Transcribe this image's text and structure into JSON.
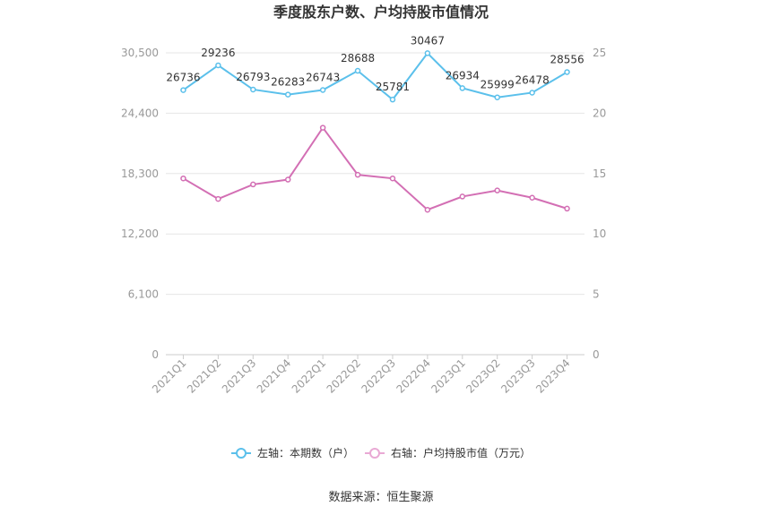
{
  "chart_data": {
    "type": "line",
    "title": "季度股东户数、户均持股市值情况",
    "categories": [
      "2021Q1",
      "2021Q2",
      "2021Q3",
      "2021Q4",
      "2022Q1",
      "2022Q2",
      "2022Q3",
      "2022Q4",
      "2023Q1",
      "2023Q2",
      "2023Q3",
      "2023Q4"
    ],
    "left_axis": {
      "min": 0,
      "max": 30500,
      "ticks": [
        "0",
        "6,100",
        "12,200",
        "18,300",
        "24,400",
        "30,500"
      ]
    },
    "right_axis": {
      "min": 0,
      "max": 25,
      "ticks": [
        "0",
        "5",
        "10",
        "15",
        "20",
        "25"
      ]
    },
    "series": [
      {
        "name": "左轴：本期数（户）",
        "axis": "left",
        "color": "#5bc0eb",
        "values": [
          26736,
          29236,
          26793,
          26283,
          26743,
          28688,
          25781,
          30467,
          26934,
          25999,
          26478,
          28556
        ],
        "labels": [
          "26736",
          "29236",
          "26793",
          "26283",
          "26743",
          "28688",
          "25781",
          "30467",
          "26934",
          "25999",
          "26478",
          "28556"
        ]
      },
      {
        "name": "右轴：户均持股市值（万元）",
        "axis": "right",
        "color": "#d36fb4",
        "values": [
          14.6,
          12.9,
          14.1,
          14.5,
          18.8,
          14.9,
          14.6,
          12.0,
          13.1,
          13.6,
          13.0,
          12.1
        ]
      }
    ],
    "grid": true,
    "legend": "bottom"
  },
  "source": "数据来源：恒生聚源"
}
